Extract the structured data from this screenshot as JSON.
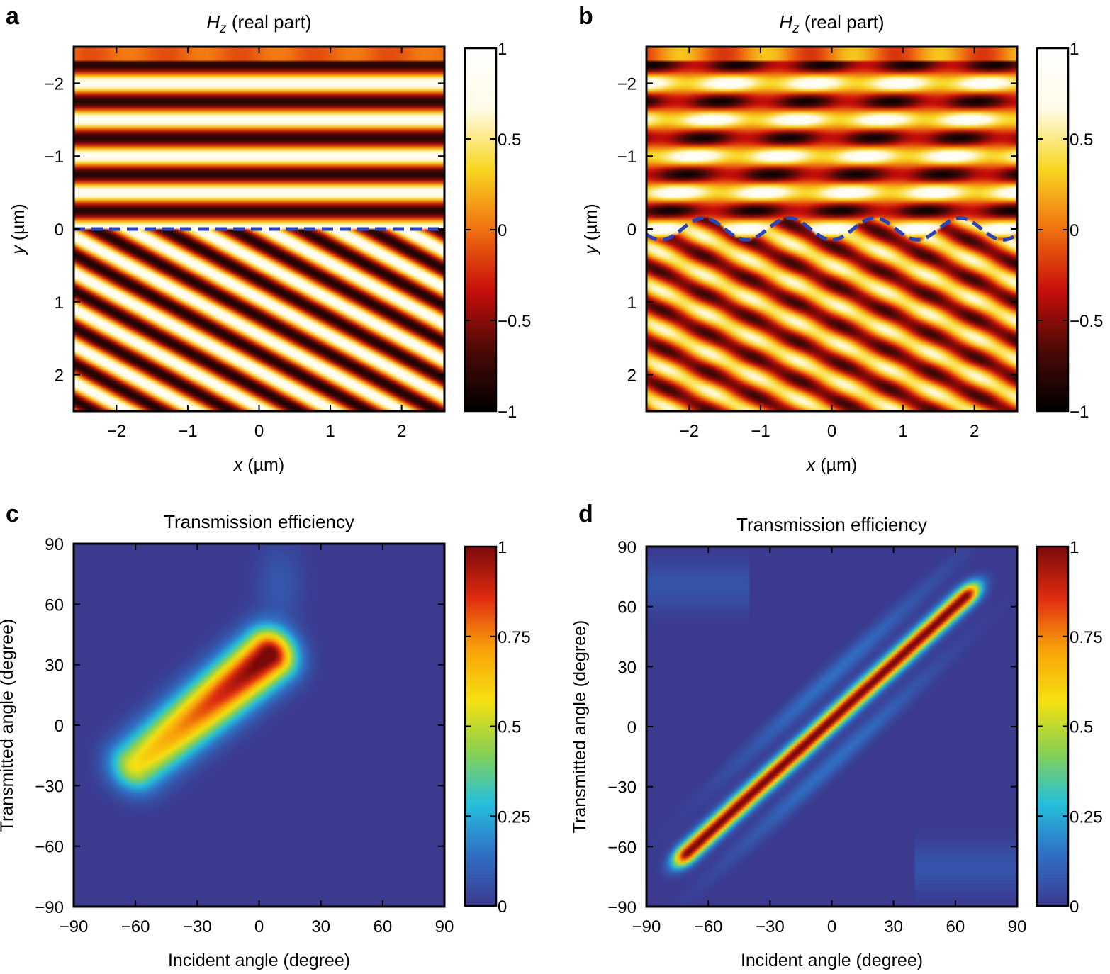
{
  "colors": {
    "field_map": [
      "#000000",
      "#4a0a06",
      "#c80e0a",
      "#f07010",
      "#f8d620",
      "#fffbe6",
      "#ffffff"
    ],
    "efficiency_map": [
      "#3b3a8f",
      "#2f70c4",
      "#25c0dc",
      "#8ad150",
      "#f6e010",
      "#f8a20a",
      "#e02b10",
      "#7a0909"
    ],
    "dashed_line": "#2a44b8"
  },
  "chart_data": [
    {
      "panel": "a",
      "type": "heatmap",
      "title_symbol": "H",
      "title_subscript": "z",
      "title_rest": " (real part)",
      "xlabel_symbol": "x",
      "xlabel_unit": " (µm)",
      "ylabel_symbol": "y",
      "ylabel_unit": " (µm)",
      "xlim": [
        -2.6,
        2.6
      ],
      "ylim": [
        -2.5,
        2.5
      ],
      "y_inverted": true,
      "xticks": [
        -2,
        -1,
        0,
        1,
        2
      ],
      "xtick_labels": [
        "−2",
        "−1",
        "0",
        "1",
        "2"
      ],
      "yticks": [
        -2,
        -1,
        0,
        1,
        2
      ],
      "ytick_labels": [
        "−2",
        "−1",
        "0",
        "1",
        "2"
      ],
      "interface": "flat dashed line at y = 0",
      "colorbar": {
        "range": [
          -1,
          1
        ],
        "ticks": [
          1,
          0.5,
          0,
          -0.5,
          -1
        ],
        "tick_labels": [
          "1",
          "0.5",
          "0",
          "−0.5",
          "−1"
        ]
      }
    },
    {
      "panel": "b",
      "type": "heatmap",
      "title_symbol": "H",
      "title_subscript": "z",
      "title_rest": " (real part)",
      "xlabel_symbol": "x",
      "xlabel_unit": " (µm)",
      "ylabel_symbol": "y",
      "ylabel_unit": " (µm)",
      "xlim": [
        -2.6,
        2.6
      ],
      "ylim": [
        -2.5,
        2.5
      ],
      "y_inverted": true,
      "xticks": [
        -2,
        -1,
        0,
        1,
        2
      ],
      "xtick_labels": [
        "−2",
        "−1",
        "0",
        "1",
        "2"
      ],
      "yticks": [
        -2,
        -1,
        0,
        1,
        2
      ],
      "ytick_labels": [
        "−2",
        "−1",
        "0",
        "1",
        "2"
      ],
      "interface": "sinusoidal dashed line, amplitude 0.15 µm, period 1.2 µm",
      "colorbar": {
        "range": [
          -1,
          1
        ],
        "ticks": [
          1,
          0.5,
          0,
          -0.5,
          -1
        ],
        "tick_labels": [
          "1",
          "0.5",
          "0",
          "−0.5",
          "−1"
        ]
      }
    },
    {
      "panel": "c",
      "type": "heatmap",
      "title": "Transmission efficiency",
      "xlabel": "Incident angle (degree)",
      "ylabel": "Transmitted angle (degree)",
      "xlim": [
        -90,
        90
      ],
      "ylim": [
        -90,
        90
      ],
      "xticks": [
        -90,
        -60,
        -30,
        0,
        30,
        60,
        90
      ],
      "xtick_labels": [
        "−90",
        "−60",
        "−30",
        "0",
        "30",
        "60",
        "90"
      ],
      "yticks": [
        -90,
        -60,
        -30,
        0,
        30,
        60,
        90
      ],
      "ytick_labels": [
        "−90",
        "−60",
        "−30",
        "0",
        "30",
        "60",
        "90"
      ],
      "ridge": {
        "from": [
          -60,
          -20
        ],
        "to": [
          5,
          35
        ],
        "peak": 1.0
      },
      "colorbar": {
        "range": [
          0,
          1
        ],
        "ticks": [
          1,
          0.75,
          0.5,
          0.25,
          0
        ],
        "tick_labels": [
          "1",
          "0.75",
          "0.5",
          "0.25",
          "0"
        ]
      }
    },
    {
      "panel": "d",
      "type": "heatmap",
      "title": "Transmission efficiency",
      "xlabel": "Incident angle (degree)",
      "ylabel": "Transmitted angle (degree)",
      "xlim": [
        -90,
        90
      ],
      "ylim": [
        -90,
        90
      ],
      "xticks": [
        -90,
        -60,
        -30,
        0,
        30,
        60,
        90
      ],
      "xtick_labels": [
        "−90",
        "−60",
        "−30",
        "0",
        "30",
        "60",
        "90"
      ],
      "yticks": [
        -90,
        -60,
        -30,
        0,
        30,
        60,
        90
      ],
      "ytick_labels": [
        "−90",
        "−60",
        "−30",
        "0",
        "30",
        "60",
        "90"
      ],
      "ridge": {
        "from": [
          -70,
          -63
        ],
        "to": [
          65,
          65
        ],
        "peak": 1.0
      },
      "colorbar": {
        "range": [
          0,
          1
        ],
        "ticks": [
          1,
          0.75,
          0.5,
          0.25,
          0
        ],
        "tick_labels": [
          "1",
          "0.75",
          "0.5",
          "0.25",
          "0"
        ]
      }
    }
  ]
}
